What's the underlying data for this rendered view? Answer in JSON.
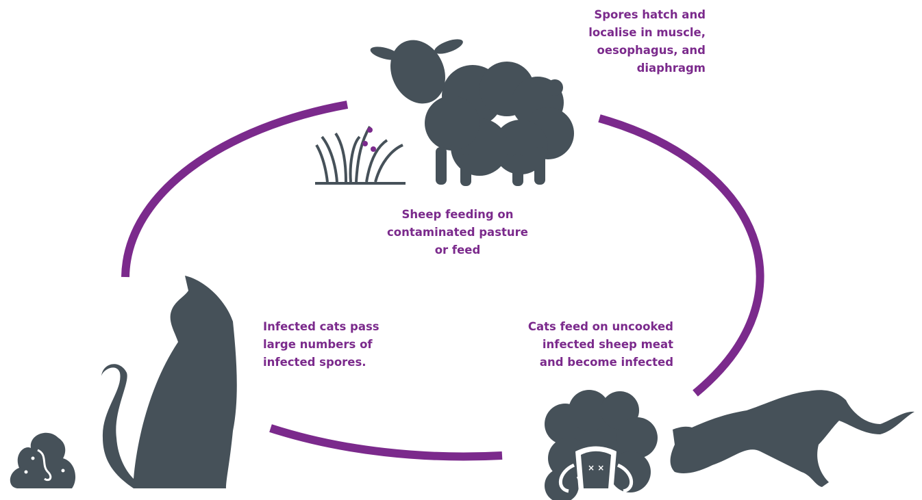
{
  "nodes": [
    {
      "lines": [
        "Spores hatch and",
        "localise in muscle,",
        "oesophagus, and",
        "diaphragm"
      ]
    },
    {
      "lines": [
        "Sheep feeding on",
        "contaminated pasture",
        "or feed"
      ]
    },
    {
      "lines": [
        "Infected cats pass",
        "large numbers of",
        "infected spores."
      ]
    },
    {
      "lines": [
        "Cats feed on uncooked",
        "infected sheep meat",
        "and become infected"
      ]
    }
  ]
}
